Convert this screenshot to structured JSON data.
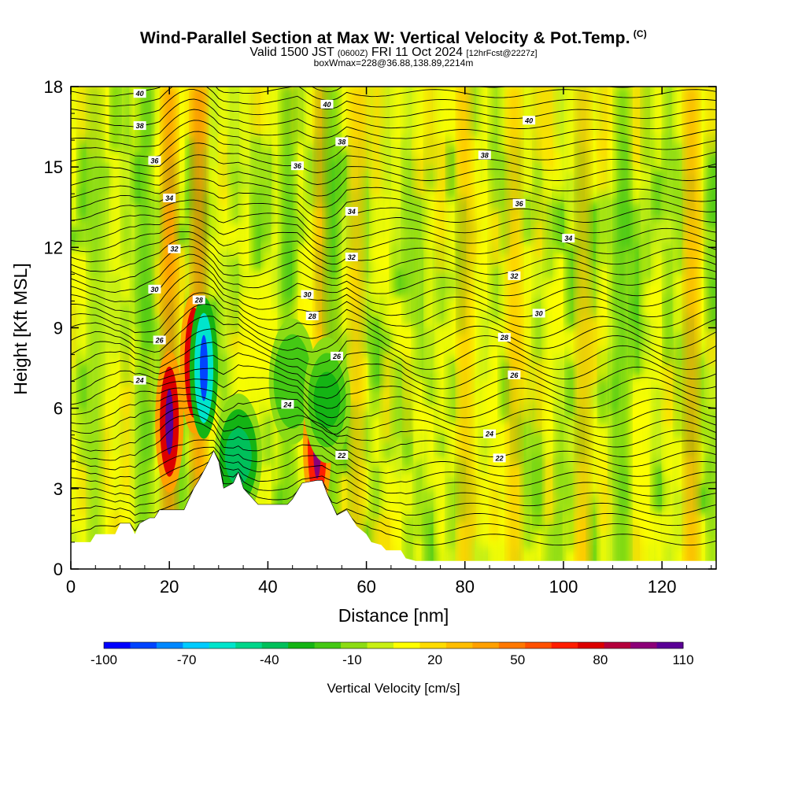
{
  "title": {
    "main": "Wind-Parallel Section at Max W: Vertical Velocity & Pot.Temp.",
    "copyright": "(C)",
    "valid_prefix": "Valid 1500 JST",
    "valid_utc": "(0600Z)",
    "valid_date": "FRI 11 Oct 2024",
    "forecast": "[12hrFcst@2227z]",
    "box_info": "boxWmax=228@36.88,138.89,2214m"
  },
  "colorbar": {
    "label": "Vertical Velocity [cm/s]",
    "tick_labels": [
      "-100",
      "-70",
      "-40",
      "-10",
      "20",
      "50",
      "80",
      "110"
    ],
    "colors": [
      "#0000ff",
      "#0044ff",
      "#0088ff",
      "#00ccff",
      "#00e5cc",
      "#00d68a",
      "#00c05a",
      "#14b414",
      "#44c814",
      "#8cdc14",
      "#c8f014",
      "#ffff00",
      "#ffdc00",
      "#ffbe00",
      "#ffa000",
      "#ff7800",
      "#ff5000",
      "#ff1e00",
      "#dc0000",
      "#b4003c",
      "#8c0078",
      "#5a0096"
    ]
  },
  "chart_data": {
    "type": "heatmap",
    "xlabel": "Distance [nm]",
    "ylabel": "Height [Kft MSL]",
    "xlim": [
      0,
      131
    ],
    "ylim": [
      0,
      18
    ],
    "xticks": [
      "0",
      "20",
      "40",
      "60",
      "80",
      "100",
      "120"
    ],
    "yticks": [
      "0",
      "3",
      "6",
      "9",
      "12",
      "15",
      "18"
    ],
    "terrain": [
      [
        0,
        1.0
      ],
      [
        4,
        1.0
      ],
      [
        5,
        1.3
      ],
      [
        9,
        1.3
      ],
      [
        10,
        1.7
      ],
      [
        12,
        1.7
      ],
      [
        13,
        1.3
      ],
      [
        14,
        1.7
      ],
      [
        16,
        1.9
      ],
      [
        17,
        1.9
      ],
      [
        18,
        2.2
      ],
      [
        23,
        2.2
      ],
      [
        24,
        2.6
      ],
      [
        25,
        3.0
      ],
      [
        26,
        3.3
      ],
      [
        28,
        4.0
      ],
      [
        29,
        4.4
      ],
      [
        30,
        4.0
      ],
      [
        31,
        3.0
      ],
      [
        33,
        3.2
      ],
      [
        34,
        3.6
      ],
      [
        35,
        3.0
      ],
      [
        37,
        2.6
      ],
      [
        38,
        2.4
      ],
      [
        40,
        2.4
      ],
      [
        42,
        2.4
      ],
      [
        44,
        2.4
      ],
      [
        45,
        2.6
      ],
      [
        46,
        2.9
      ],
      [
        47,
        3.2
      ],
      [
        50,
        3.3
      ],
      [
        51,
        3.3
      ],
      [
        52,
        2.8
      ],
      [
        54,
        2.0
      ],
      [
        56,
        2.2
      ],
      [
        57,
        1.9
      ],
      [
        58,
        1.6
      ],
      [
        60,
        1.3
      ],
      [
        61,
        1.0
      ],
      [
        63,
        0.9
      ],
      [
        64,
        0.7
      ],
      [
        67,
        0.7
      ],
      [
        68,
        0.4
      ],
      [
        70,
        0.3
      ],
      [
        131,
        0.3
      ]
    ],
    "w_features": [
      {
        "x": 20,
        "y": 5.5,
        "w": 110
      },
      {
        "x": 25,
        "y": 7.7,
        "w": 100
      },
      {
        "x": 27,
        "y": 7.5,
        "w": -100
      },
      {
        "x": 34,
        "y": 4.2,
        "w": -45
      },
      {
        "x": 45,
        "y": 7.0,
        "w": -30
      },
      {
        "x": 50,
        "y": 4.6,
        "w": 95
      },
      {
        "x": 52,
        "y": 6.3,
        "w": -35
      }
    ],
    "isentropes": [
      {
        "label": "22",
        "level": 22
      },
      {
        "label": "24",
        "level": 24
      },
      {
        "label": "26",
        "level": 26
      },
      {
        "label": "28",
        "level": 28
      },
      {
        "label": "30",
        "level": 30
      },
      {
        "label": "32",
        "level": 32
      },
      {
        "label": "34",
        "level": 34
      },
      {
        "label": "36",
        "level": 36
      },
      {
        "label": "38",
        "level": 38
      },
      {
        "label": "40",
        "level": 40
      }
    ]
  }
}
